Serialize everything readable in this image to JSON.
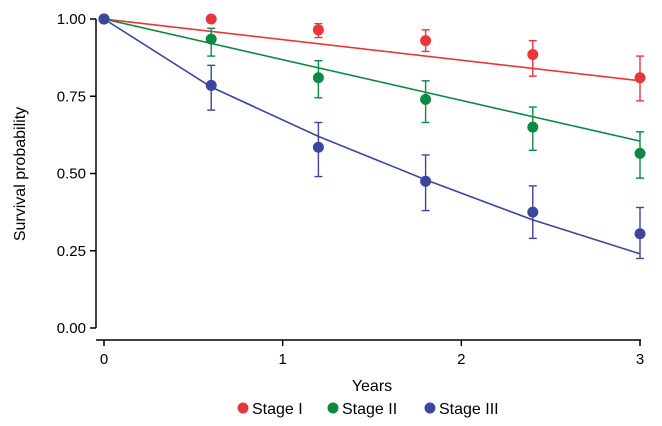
{
  "chart_data": {
    "type": "scatter",
    "xlabel": "Years",
    "ylabel": "Survival probability",
    "xlim": [
      0,
      3
    ],
    "ylim": [
      0,
      1
    ],
    "xticks": [
      "0",
      "1",
      "2",
      "3"
    ],
    "yticks": [
      "0.00",
      "0.25",
      "0.50",
      "0.75",
      "1.00"
    ],
    "legend_position": "bottom",
    "grid": false,
    "series": [
      {
        "name": "Stage I",
        "color": "#e8373a",
        "points": [
          {
            "x": 0,
            "y": 1.0,
            "lo": null,
            "hi": null
          },
          {
            "x": 0.6,
            "y": 1.0,
            "lo": null,
            "hi": null
          },
          {
            "x": 1.2,
            "y": 0.965,
            "lo": 0.94,
            "hi": 0.985
          },
          {
            "x": 1.8,
            "y": 0.93,
            "lo": 0.895,
            "hi": 0.965
          },
          {
            "x": 2.4,
            "y": 0.885,
            "lo": 0.815,
            "hi": 0.93
          },
          {
            "x": 3.0,
            "y": 0.81,
            "lo": 0.735,
            "hi": 0.88
          }
        ],
        "fit": [
          [
            0,
            1.0
          ],
          [
            3.0,
            0.8
          ]
        ]
      },
      {
        "name": "Stage II",
        "color": "#0c8a42",
        "points": [
          {
            "x": 0,
            "y": 1.0,
            "lo": null,
            "hi": null
          },
          {
            "x": 0.6,
            "y": 0.935,
            "lo": 0.88,
            "hi": 0.97
          },
          {
            "x": 1.2,
            "y": 0.81,
            "lo": 0.745,
            "hi": 0.865
          },
          {
            "x": 1.8,
            "y": 0.74,
            "lo": 0.665,
            "hi": 0.8
          },
          {
            "x": 2.4,
            "y": 0.65,
            "lo": 0.575,
            "hi": 0.715
          },
          {
            "x": 3.0,
            "y": 0.565,
            "lo": 0.485,
            "hi": 0.635
          }
        ],
        "fit": [
          [
            0,
            1.0
          ],
          [
            3.0,
            0.605
          ]
        ]
      },
      {
        "name": "Stage III",
        "color": "#3a479c",
        "points": [
          {
            "x": 0,
            "y": 1.0,
            "lo": null,
            "hi": null
          },
          {
            "x": 0.6,
            "y": 0.785,
            "lo": 0.705,
            "hi": 0.85
          },
          {
            "x": 1.2,
            "y": 0.585,
            "lo": 0.49,
            "hi": 0.665
          },
          {
            "x": 1.8,
            "y": 0.475,
            "lo": 0.38,
            "hi": 0.56
          },
          {
            "x": 2.4,
            "y": 0.375,
            "lo": 0.29,
            "hi": 0.46
          },
          {
            "x": 3.0,
            "y": 0.305,
            "lo": 0.225,
            "hi": 0.39
          }
        ],
        "fit": [
          [
            0,
            1.0
          ],
          [
            0.6,
            0.78
          ],
          [
            1.2,
            0.62
          ],
          [
            1.8,
            0.48
          ],
          [
            2.4,
            0.35
          ],
          [
            3.0,
            0.24
          ]
        ]
      }
    ]
  }
}
